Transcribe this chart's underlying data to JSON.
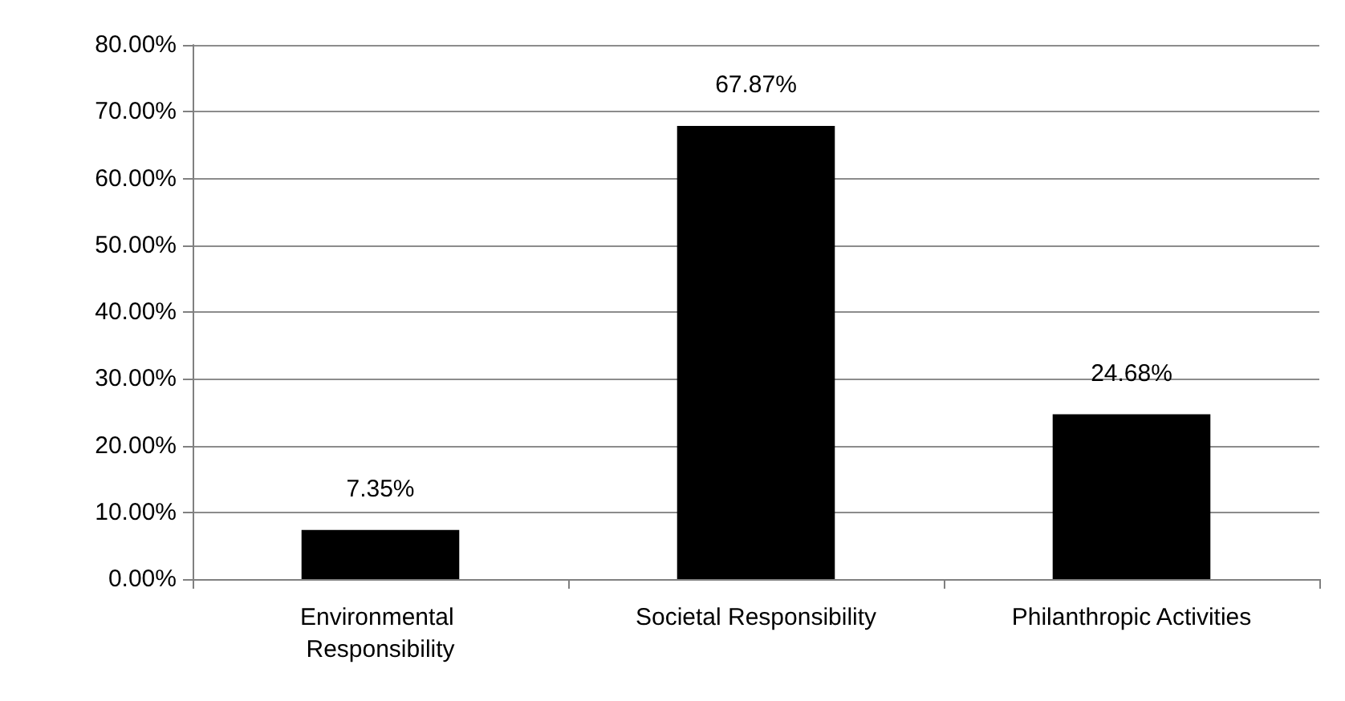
{
  "chart_data": {
    "type": "bar",
    "categories": [
      "Environmental Responsibility",
      "Societal Responsibility",
      "Philanthropic Activities"
    ],
    "values": [
      7.35,
      67.87,
      24.68
    ],
    "color": "#000000",
    "value_labels": [
      "7.35%",
      "67.87%",
      "24.68%"
    ],
    "ylim": [
      0,
      80
    ],
    "yticks": [
      {
        "value": 0,
        "label": "0.00%"
      },
      {
        "value": 10,
        "label": "10.00%"
      },
      {
        "value": 20,
        "label": "20.00%"
      },
      {
        "value": 30,
        "label": "30.00%"
      },
      {
        "value": 40,
        "label": "40.00%"
      },
      {
        "value": 50,
        "label": "50.00%"
      },
      {
        "value": 60,
        "label": "60.00%"
      },
      {
        "value": 70,
        "label": "70.00%"
      },
      {
        "value": 80,
        "label": "80.00%"
      }
    ],
    "grid": "y"
  }
}
